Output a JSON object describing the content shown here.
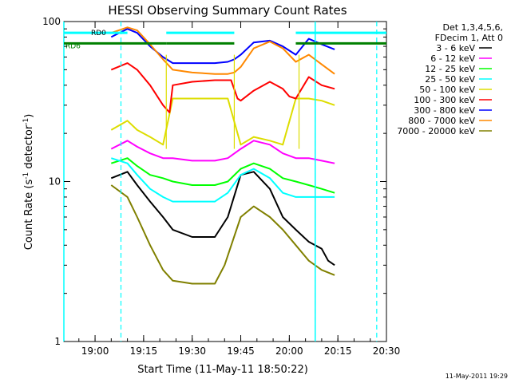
{
  "chart_data": {
    "type": "line",
    "title": "HESSI Observing Summary Count Rates",
    "xlabel": "Start Time (11-May-11 18:50:22)",
    "ylabel": "Count Rate (s⁻¹ detector⁻¹)",
    "ylabel_parts": [
      "Count Rate (s",
      "-1",
      " detector",
      "-1",
      ")"
    ],
    "x_scale": "time",
    "y_scale": "log",
    "x_ticks": [
      "19:00",
      "19:15",
      "19:30",
      "19:45",
      "20:00",
      "20:15",
      "20:30"
    ],
    "y_ticks": [
      "1",
      "10",
      "100"
    ],
    "xlim": [
      "18:50:22",
      "20:30"
    ],
    "ylim": [
      1,
      100
    ],
    "legend_header": [
      "Det 1,3,4,5,6,",
      "FDecim 1, Att 0"
    ],
    "legend_placement": "right",
    "footer_date": "11-May-2011 19:29",
    "state_labels": [
      "RD0",
      "RD6"
    ],
    "series": [
      {
        "name": "3 - 6 keV",
        "color": "#000000",
        "points": [
          [
            "19:05",
            10.5
          ],
          [
            "19:10",
            11.5
          ],
          [
            "19:13",
            9.5
          ],
          [
            "19:17",
            7.5
          ],
          [
            "19:21",
            6.0
          ],
          [
            "19:24",
            5.0
          ],
          [
            "19:30",
            4.5
          ],
          [
            "19:37",
            4.5
          ],
          [
            "19:41",
            6.0
          ],
          [
            "19:45",
            11.0
          ],
          [
            "19:49",
            11.5
          ],
          [
            "19:54",
            9.0
          ],
          [
            "19:58",
            6.0
          ],
          [
            "20:02",
            5.0
          ],
          [
            "20:06",
            4.2
          ],
          [
            "20:10",
            3.8
          ],
          [
            "20:12",
            3.2
          ],
          [
            "20:14",
            3.0
          ]
        ]
      },
      {
        "name": "6 - 12 keV",
        "color": "#ff00ff",
        "points": [
          [
            "19:05",
            16
          ],
          [
            "19:10",
            18
          ],
          [
            "19:13",
            16.5
          ],
          [
            "19:17",
            15
          ],
          [
            "19:21",
            14
          ],
          [
            "19:24",
            14
          ],
          [
            "19:30",
            13.5
          ],
          [
            "19:37",
            13.5
          ],
          [
            "19:41",
            14
          ],
          [
            "19:45",
            16
          ],
          [
            "19:49",
            18
          ],
          [
            "19:54",
            17
          ],
          [
            "19:58",
            15
          ],
          [
            "20:02",
            14
          ],
          [
            "20:06",
            14
          ],
          [
            "20:10",
            13.5
          ],
          [
            "20:14",
            13
          ]
        ]
      },
      {
        "name": "12 - 25 keV",
        "color": "#00ff00",
        "points": [
          [
            "19:05",
            13
          ],
          [
            "19:10",
            14
          ],
          [
            "19:13",
            12.5
          ],
          [
            "19:17",
            11
          ],
          [
            "19:21",
            10.5
          ],
          [
            "19:24",
            10
          ],
          [
            "19:30",
            9.5
          ],
          [
            "19:37",
            9.5
          ],
          [
            "19:41",
            10
          ],
          [
            "19:45",
            12
          ],
          [
            "19:49",
            13
          ],
          [
            "19:54",
            12
          ],
          [
            "19:58",
            10.5
          ],
          [
            "20:02",
            10
          ],
          [
            "20:06",
            9.5
          ],
          [
            "20:10",
            9
          ],
          [
            "20:14",
            8.5
          ]
        ]
      },
      {
        "name": "25 - 50 keV",
        "color": "#00ffff",
        "points": [
          [
            "19:05",
            14
          ],
          [
            "19:10",
            13
          ],
          [
            "19:13",
            11
          ],
          [
            "19:17",
            9
          ],
          [
            "19:21",
            8
          ],
          [
            "19:24",
            7.5
          ],
          [
            "19:30",
            7.5
          ],
          [
            "19:37",
            7.5
          ],
          [
            "19:41",
            8.5
          ],
          [
            "19:45",
            11
          ],
          [
            "19:49",
            12
          ],
          [
            "19:54",
            10.5
          ],
          [
            "19:58",
            8.5
          ],
          [
            "20:02",
            8
          ],
          [
            "20:06",
            8
          ],
          [
            "20:10",
            8
          ],
          [
            "20:14",
            8
          ]
        ]
      },
      {
        "name": "50 - 100 keV",
        "color": "#dddd00",
        "points": [
          [
            "19:05",
            21
          ],
          [
            "19:10",
            24
          ],
          [
            "19:13",
            21
          ],
          [
            "19:17",
            19
          ],
          [
            "19:21",
            17
          ],
          [
            "19:24",
            33
          ],
          [
            "19:30",
            33
          ],
          [
            "19:37",
            33
          ],
          [
            "19:41",
            33
          ],
          [
            "19:45",
            17
          ],
          [
            "19:49",
            19
          ],
          [
            "19:54",
            18
          ],
          [
            "19:58",
            17
          ],
          [
            "20:02",
            33
          ],
          [
            "20:06",
            33
          ],
          [
            "20:10",
            32
          ],
          [
            "20:14",
            30
          ]
        ]
      },
      {
        "name": "100 - 300 keV",
        "color": "#ff0000",
        "points": [
          [
            "19:05",
            50
          ],
          [
            "19:10",
            55
          ],
          [
            "19:13",
            50
          ],
          [
            "19:17",
            40
          ],
          [
            "19:21",
            30
          ],
          [
            "19:23",
            27
          ],
          [
            "19:24",
            40
          ],
          [
            "19:30",
            42
          ],
          [
            "19:37",
            43
          ],
          [
            "19:42",
            43
          ],
          [
            "19:44",
            33
          ],
          [
            "19:45",
            32
          ],
          [
            "19:49",
            37
          ],
          [
            "19:54",
            42
          ],
          [
            "19:58",
            38
          ],
          [
            "20:00",
            34
          ],
          [
            "20:02",
            33
          ],
          [
            "20:06",
            45
          ],
          [
            "20:10",
            40
          ],
          [
            "20:14",
            38
          ]
        ]
      },
      {
        "name": "300 - 800 keV",
        "color": "#0000ff",
        "points": [
          [
            "19:05",
            80
          ],
          [
            "19:10",
            90
          ],
          [
            "19:13",
            85
          ],
          [
            "19:17",
            70
          ],
          [
            "19:21",
            60
          ],
          [
            "19:24",
            55
          ],
          [
            "19:30",
            55
          ],
          [
            "19:37",
            55
          ],
          [
            "19:41",
            56
          ],
          [
            "19:43",
            58
          ],
          [
            "19:45",
            62
          ],
          [
            "19:49",
            74
          ],
          [
            "19:54",
            76
          ],
          [
            "19:58",
            70
          ],
          [
            "20:02",
            62
          ],
          [
            "20:06",
            78
          ],
          [
            "20:10",
            72
          ],
          [
            "20:14",
            67
          ]
        ]
      },
      {
        "name": "800 - 7000 keV",
        "color": "#ff8800",
        "points": [
          [
            "19:05",
            85
          ],
          [
            "19:10",
            92
          ],
          [
            "19:13",
            88
          ],
          [
            "19:17",
            72
          ],
          [
            "19:21",
            58
          ],
          [
            "19:24",
            50
          ],
          [
            "19:30",
            48
          ],
          [
            "19:37",
            47
          ],
          [
            "19:41",
            47
          ],
          [
            "19:43",
            48
          ],
          [
            "19:45",
            52
          ],
          [
            "19:49",
            68
          ],
          [
            "19:54",
            75
          ],
          [
            "19:58",
            68
          ],
          [
            "20:02",
            56
          ],
          [
            "20:06",
            62
          ],
          [
            "20:10",
            54
          ],
          [
            "20:14",
            47
          ]
        ]
      },
      {
        "name": "7000 - 20000 keV",
        "color": "#808000",
        "points": [
          [
            "19:05",
            9.5
          ],
          [
            "19:10",
            8
          ],
          [
            "19:13",
            6
          ],
          [
            "19:17",
            4
          ],
          [
            "19:21",
            2.8
          ],
          [
            "19:24",
            2.4
          ],
          [
            "19:30",
            2.3
          ],
          [
            "19:37",
            2.3
          ],
          [
            "19:40",
            3
          ],
          [
            "19:45",
            6
          ],
          [
            "19:49",
            7
          ],
          [
            "19:54",
            6
          ],
          [
            "19:58",
            5
          ],
          [
            "20:02",
            4
          ],
          [
            "20:06",
            3.2
          ],
          [
            "20:10",
            2.8
          ],
          [
            "20:14",
            2.6
          ]
        ]
      }
    ],
    "flags": {
      "rd0": {
        "name": "RD0",
        "color": "#00ffff",
        "y": 85,
        "segments": [
          [
            "18:50:22",
            "19:10"
          ],
          [
            "19:22",
            "19:43"
          ],
          [
            "20:02",
            "20:30"
          ]
        ]
      },
      "rd6": {
        "name": "RD6",
        "color": "#008000",
        "y": 73,
        "segments": [
          [
            "18:50:22",
            "19:22"
          ],
          [
            "19:22",
            "19:43"
          ],
          [
            "20:02",
            "20:30"
          ]
        ]
      }
    },
    "vlines_dashed": {
      "color": "#00ffff",
      "x": [
        "19:08",
        "20:08",
        "20:27"
      ]
    },
    "vlines_solid_cyan": [
      "18:50:22",
      "20:08"
    ],
    "vlines_solid_yellow": [
      "19:22",
      "19:43",
      "20:03"
    ]
  }
}
